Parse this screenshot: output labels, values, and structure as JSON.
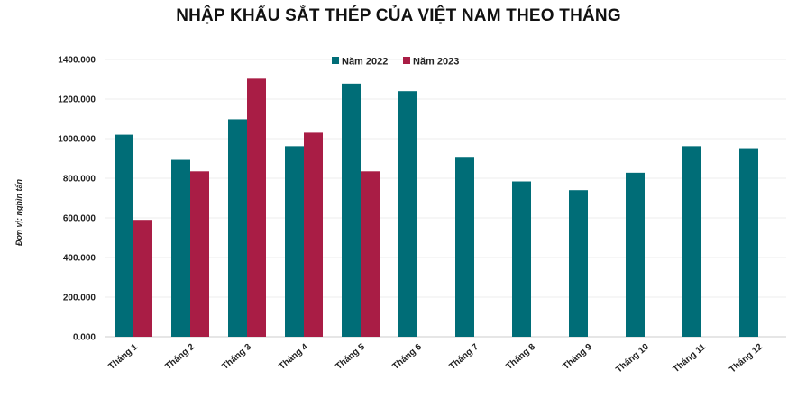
{
  "chart_data": {
    "type": "bar",
    "title": "NHẬP KHẨU SẮT THÉP CỦA VIỆT NAM THEO THÁNG",
    "ylabel": "Đơn vị: nghìn tấn",
    "xlabel": "",
    "categories": [
      "Tháng 1",
      "Tháng 2",
      "Tháng 3",
      "Tháng 4",
      "Tháng 5",
      "Tháng 6",
      "Tháng 7",
      "Tháng 8",
      "Tháng 9",
      "Tháng 10",
      "Tháng 11",
      "Tháng 12"
    ],
    "series": [
      {
        "name": "Năm 2022",
        "color": "#006d77",
        "values": [
          1020,
          893,
          1098,
          962,
          1278,
          1240,
          908,
          784,
          740,
          828,
          962,
          952
        ]
      },
      {
        "name": "Năm 2023",
        "color": "#a91d45",
        "values": [
          590,
          835,
          1303,
          1030,
          835,
          null,
          null,
          null,
          null,
          null,
          null,
          null
        ]
      }
    ],
    "ylim": [
      0,
      1400
    ],
    "yticks": [
      "0.000",
      "200.000",
      "400.000",
      "600.000",
      "800.000",
      "1000.000",
      "1200.000",
      "1400.000"
    ],
    "grid": true,
    "legend_position": "top-center"
  }
}
